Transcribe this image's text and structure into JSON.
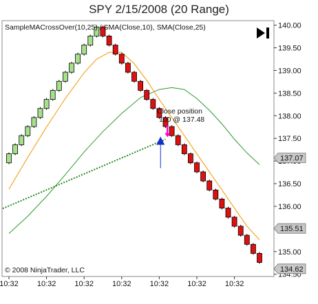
{
  "title": "SPY  2/15/2008 (20 Range)",
  "indicators_label": "SampleMACrossOver(10,25) / SMA(Close,10), SMA(Close,25)",
  "copyright": "© 2008 NinjaTrader, LLC",
  "strategy_button_icon": "play-to-end-icon",
  "signal": {
    "line1": "Close position",
    "line2": "100 @ 137.48"
  },
  "colors": {
    "up_bar": "#a6e08c",
    "down_bar": "#e01010",
    "sma_fast": "#f5a623",
    "sma_slow": "#2a9a2a",
    "trend": "#1e8a1e",
    "buy_arrow": "#1030d0",
    "sell_arrow": "#ff00cc",
    "price_marker": "#c8c8c8"
  },
  "chart_data": {
    "type": "candlestick",
    "ylim": [
      134.45,
      140.1
    ],
    "y_ticks": [
      134.5,
      135.0,
      135.5,
      136.0,
      136.5,
      137.0,
      137.5,
      138.0,
      138.5,
      139.0,
      139.5,
      140.0
    ],
    "y_tick_labels": [
      "134.50",
      "135.00",
      "135.50",
      "136.00",
      "136.50",
      "137.00",
      "137.50",
      "138.00",
      "138.50",
      "139.00",
      "139.50",
      "140.00"
    ],
    "x_tick_labels": [
      "10:32",
      "10:32",
      "10:32",
      "10:32",
      "10:32",
      "10:32",
      "10:32"
    ],
    "bars": [
      {
        "dir": "up",
        "open": 136.96,
        "close": 137.16
      },
      {
        "dir": "up",
        "open": 137.16,
        "close": 137.36
      },
      {
        "dir": "up",
        "open": 137.36,
        "close": 137.56
      },
      {
        "dir": "up",
        "open": 137.56,
        "close": 137.76
      },
      {
        "dir": "up",
        "open": 137.76,
        "close": 137.96
      },
      {
        "dir": "up",
        "open": 137.96,
        "close": 138.16
      },
      {
        "dir": "up",
        "open": 138.16,
        "close": 138.36
      },
      {
        "dir": "up",
        "open": 138.36,
        "close": 138.56
      },
      {
        "dir": "up",
        "open": 138.56,
        "close": 138.76
      },
      {
        "dir": "up",
        "open": 138.76,
        "close": 138.96
      },
      {
        "dir": "up",
        "open": 138.96,
        "close": 139.16
      },
      {
        "dir": "up",
        "open": 139.16,
        "close": 139.36
      },
      {
        "dir": "up",
        "open": 139.36,
        "close": 139.56
      },
      {
        "dir": "up",
        "open": 139.56,
        "close": 139.76
      },
      {
        "dir": "up",
        "open": 139.76,
        "close": 139.96
      },
      {
        "dir": "down",
        "open": 139.96,
        "close": 139.76
      },
      {
        "dir": "down",
        "open": 139.76,
        "close": 139.56
      },
      {
        "dir": "down",
        "open": 139.56,
        "close": 139.36
      },
      {
        "dir": "down",
        "open": 139.36,
        "close": 139.16
      },
      {
        "dir": "down",
        "open": 139.16,
        "close": 138.96
      },
      {
        "dir": "down",
        "open": 138.96,
        "close": 138.76
      },
      {
        "dir": "down",
        "open": 138.76,
        "close": 138.56
      },
      {
        "dir": "down",
        "open": 138.56,
        "close": 138.36
      },
      {
        "dir": "down",
        "open": 138.36,
        "close": 138.16
      },
      {
        "dir": "down",
        "open": 138.16,
        "close": 137.96
      },
      {
        "dir": "down",
        "open": 137.96,
        "close": 137.76
      },
      {
        "dir": "down",
        "open": 137.76,
        "close": 137.56
      },
      {
        "dir": "down",
        "open": 137.56,
        "close": 137.36
      },
      {
        "dir": "down",
        "open": 137.36,
        "close": 137.16
      },
      {
        "dir": "down",
        "open": 137.16,
        "close": 136.96
      },
      {
        "dir": "down",
        "open": 136.96,
        "close": 136.76
      },
      {
        "dir": "down",
        "open": 136.76,
        "close": 136.56
      },
      {
        "dir": "down",
        "open": 136.56,
        "close": 136.36
      },
      {
        "dir": "down",
        "open": 136.36,
        "close": 136.16
      },
      {
        "dir": "down",
        "open": 136.16,
        "close": 135.96
      },
      {
        "dir": "down",
        "open": 135.96,
        "close": 135.76
      },
      {
        "dir": "down",
        "open": 135.76,
        "close": 135.56
      },
      {
        "dir": "down",
        "open": 135.56,
        "close": 135.36
      },
      {
        "dir": "down",
        "open": 135.36,
        "close": 135.16
      },
      {
        "dir": "down",
        "open": 135.16,
        "close": 134.96
      },
      {
        "dir": "down",
        "open": 134.96,
        "close": 134.76
      }
    ],
    "sma_fast": [
      [
        0,
        136.38
      ],
      [
        3,
        137.08
      ],
      [
        6,
        137.75
      ],
      [
        9,
        138.38
      ],
      [
        12,
        138.95
      ],
      [
        14,
        139.25
      ],
      [
        16,
        139.4
      ],
      [
        18,
        139.4
      ],
      [
        20,
        139.15
      ],
      [
        22,
        138.78
      ],
      [
        24,
        138.36
      ],
      [
        26,
        137.96
      ],
      [
        28,
        137.56
      ],
      [
        30,
        137.16
      ],
      [
        32,
        136.76
      ],
      [
        34,
        136.36
      ],
      [
        36,
        135.96
      ],
      [
        38,
        135.56
      ],
      [
        40,
        135.26
      ]
    ],
    "sma_slow": [
      [
        0,
        135.4
      ],
      [
        3,
        135.78
      ],
      [
        6,
        136.22
      ],
      [
        9,
        136.7
      ],
      [
        12,
        137.2
      ],
      [
        15,
        137.65
      ],
      [
        18,
        138.05
      ],
      [
        21,
        138.4
      ],
      [
        24,
        138.58
      ],
      [
        26,
        138.62
      ],
      [
        28,
        138.58
      ],
      [
        30,
        138.38
      ],
      [
        32,
        138.12
      ],
      [
        34,
        137.82
      ],
      [
        36,
        137.48
      ],
      [
        38,
        137.18
      ],
      [
        40,
        136.92
      ]
    ],
    "trend_line": [
      [
        -1,
        135.95
      ],
      [
        25,
        137.48
      ]
    ],
    "entry_bar": 24.2,
    "exit_bar": 25.3,
    "entry_price": 137.48,
    "last_price_markers": [
      137.07,
      135.51,
      134.62
    ]
  }
}
